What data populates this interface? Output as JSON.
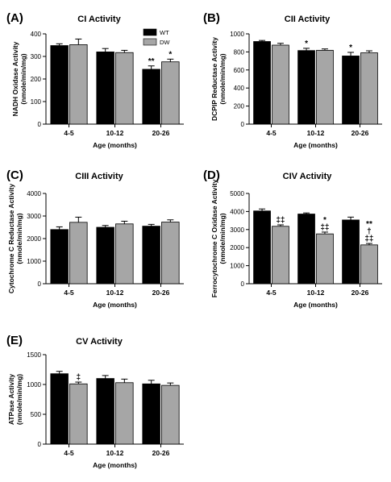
{
  "figure": {
    "series_colors": {
      "WT": "#000000",
      "DW": "#a6a6a6"
    },
    "legend": {
      "items": [
        "WT",
        "DW"
      ],
      "panel": "A",
      "placement": "top-right"
    }
  },
  "chart_data": [
    {
      "panel": "(A)",
      "type": "bar",
      "title": "CI Activity",
      "ylabel": [
        "NADH Oxidase Activity",
        "(nmole/min/mg)"
      ],
      "xlabel": "Age  (months)",
      "categories": [
        "4-5",
        "10-12",
        "20-26"
      ],
      "ylim": [
        0,
        400
      ],
      "yticks": [
        0,
        100,
        200,
        300,
        400
      ],
      "series": [
        {
          "name": "WT",
          "values": [
            348,
            320,
            243
          ],
          "errors": [
            8,
            15,
            15
          ]
        },
        {
          "name": "DW",
          "values": [
            352,
            317,
            276
          ],
          "errors": [
            25,
            10,
            12
          ]
        }
      ],
      "annotations": [
        {
          "series": "WT",
          "category": "20-26",
          "text": "**"
        },
        {
          "series": "DW",
          "category": "20-26",
          "text": "*"
        }
      ]
    },
    {
      "panel": "(B)",
      "type": "bar",
      "title": "CII Activity",
      "ylabel": [
        "DCPIP Reductase Activity",
        "(nmole/min/mg)"
      ],
      "xlabel": "Age  (months)",
      "categories": [
        "4-5",
        "10-12",
        "20-26"
      ],
      "ylim": [
        0,
        1000
      ],
      "yticks": [
        0,
        200,
        400,
        600,
        800,
        1000
      ],
      "series": [
        {
          "name": "WT",
          "values": [
            915,
            815,
            755
          ],
          "errors": [
            12,
            25,
            40
          ]
        },
        {
          "name": "DW",
          "values": [
            875,
            818,
            790
          ],
          "errors": [
            20,
            15,
            22
          ]
        }
      ],
      "annotations": [
        {
          "series": "WT",
          "category": "10-12",
          "text": "*"
        },
        {
          "series": "WT",
          "category": "20-26",
          "text": "*"
        }
      ]
    },
    {
      "panel": "(C)",
      "type": "bar",
      "title": "CIII Activity",
      "ylabel": [
        "Cytochrome C Reductase Activity",
        "(nmole/min/mg)"
      ],
      "xlabel": "Age  (months)",
      "categories": [
        "4-5",
        "10-12",
        "20-26"
      ],
      "ylim": [
        0,
        4000
      ],
      "yticks": [
        0,
        1000,
        2000,
        3000,
        4000
      ],
      "series": [
        {
          "name": "WT",
          "values": [
            2400,
            2500,
            2550
          ],
          "errors": [
            120,
            80,
            80
          ]
        },
        {
          "name": "DW",
          "values": [
            2720,
            2650,
            2730
          ],
          "errors": [
            230,
            120,
            100
          ]
        }
      ],
      "annotations": []
    },
    {
      "panel": "(D)",
      "type": "bar",
      "title": "CIV Activity",
      "ylabel": [
        "Ferrocytochrome C Oxidase Activity",
        "(nmole/min/mg)"
      ],
      "xlabel": "Age  (months)",
      "categories": [
        "4-5",
        "10-12",
        "20-26"
      ],
      "ylim": [
        0,
        5000
      ],
      "yticks": [
        0,
        1000,
        2000,
        3000,
        4000,
        5000
      ],
      "series": [
        {
          "name": "WT",
          "values": [
            4030,
            3860,
            3530
          ],
          "errors": [
            110,
            60,
            160
          ]
        },
        {
          "name": "DW",
          "values": [
            3180,
            2760,
            2150
          ],
          "errors": [
            80,
            100,
            80
          ]
        }
      ],
      "annotations": [
        {
          "series": "DW",
          "category": "4-5",
          "lines": [
            "‡‡"
          ]
        },
        {
          "series": "DW",
          "category": "10-12",
          "lines": [
            "*",
            "‡‡"
          ]
        },
        {
          "series": "DW",
          "category": "20-26",
          "lines": [
            "**",
            "†",
            "‡‡"
          ]
        }
      ]
    },
    {
      "panel": "(E)",
      "type": "bar",
      "title": "CV Activity",
      "ylabel": [
        "ATPase Activity",
        "(nmole/min/mg)"
      ],
      "xlabel": "Age  (months)",
      "categories": [
        "4-5",
        "10-12",
        "20-26"
      ],
      "ylim": [
        0,
        1500
      ],
      "yticks": [
        0,
        500,
        1000,
        1500
      ],
      "series": [
        {
          "name": "WT",
          "values": [
            1180,
            1100,
            1010
          ],
          "errors": [
            40,
            50,
            60
          ]
        },
        {
          "name": "DW",
          "values": [
            1010,
            1030,
            985
          ],
          "errors": [
            30,
            60,
            40
          ]
        }
      ],
      "annotations": [
        {
          "series": "DW",
          "category": "4-5",
          "text": "‡"
        }
      ]
    }
  ]
}
